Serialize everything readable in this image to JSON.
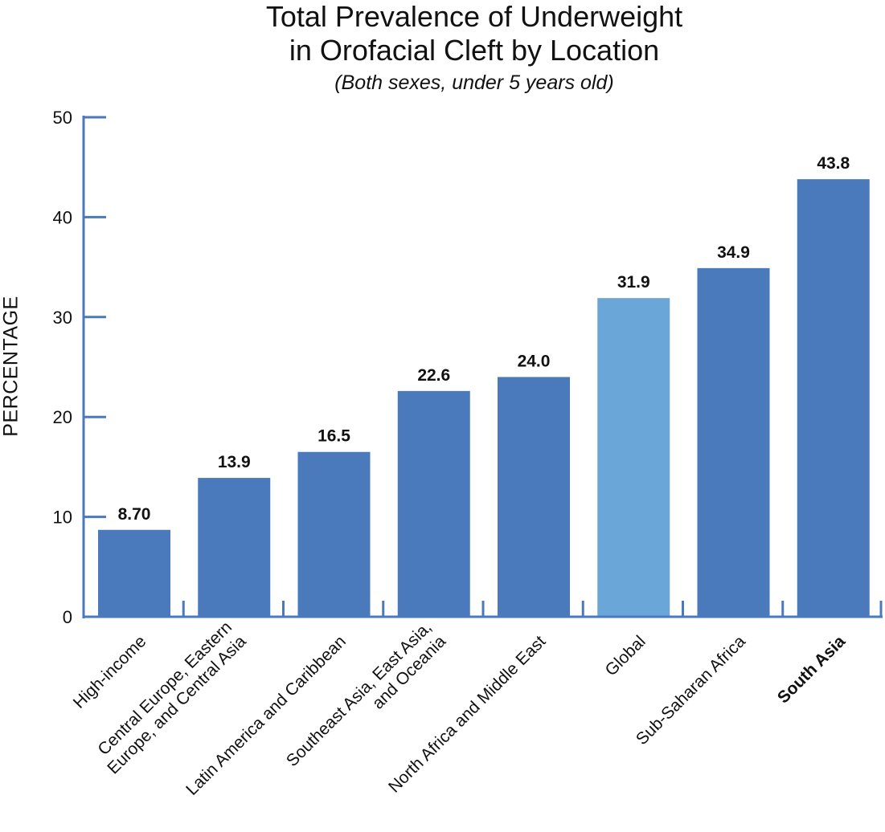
{
  "chart_data": {
    "type": "bar",
    "title_lines": [
      "Total Prevalence of Underweight",
      "in Orofacial Cleft by Location"
    ],
    "subtitle": "(Both sexes, under 5 years old)",
    "ylabel": "PERCENTAGE",
    "xlabel": "",
    "ylim": [
      0,
      50
    ],
    "yticks": [
      0,
      10,
      20,
      30,
      40,
      50
    ],
    "grid": false,
    "categories": [
      [
        "High-income"
      ],
      [
        "Central Europe, Eastern",
        "Europe, and Central Asia"
      ],
      [
        "Latin America and Caribbean"
      ],
      [
        "Southeast Asia, East Asia,",
        "and Oceania"
      ],
      [
        "North Africa and Middle East"
      ],
      [
        "Global"
      ],
      [
        "Sub-Saharan Africa"
      ],
      [
        "South Asia"
      ]
    ],
    "values": [
      8.7,
      13.9,
      16.5,
      22.6,
      24.0,
      31.9,
      34.9,
      43.8
    ],
    "value_labels": [
      "8.70",
      "13.9",
      "16.5",
      "22.6",
      "24.0",
      "31.9",
      "34.9",
      "43.8"
    ],
    "highlight": [
      false,
      false,
      false,
      false,
      false,
      true,
      false,
      false
    ],
    "bold_labels": [
      false,
      false,
      false,
      false,
      false,
      false,
      false,
      true
    ],
    "colors": {
      "bar": "#4a7abb",
      "highlight_bar": "#6aa7d8",
      "axis": "#4a7abb",
      "text": "#111111"
    }
  }
}
